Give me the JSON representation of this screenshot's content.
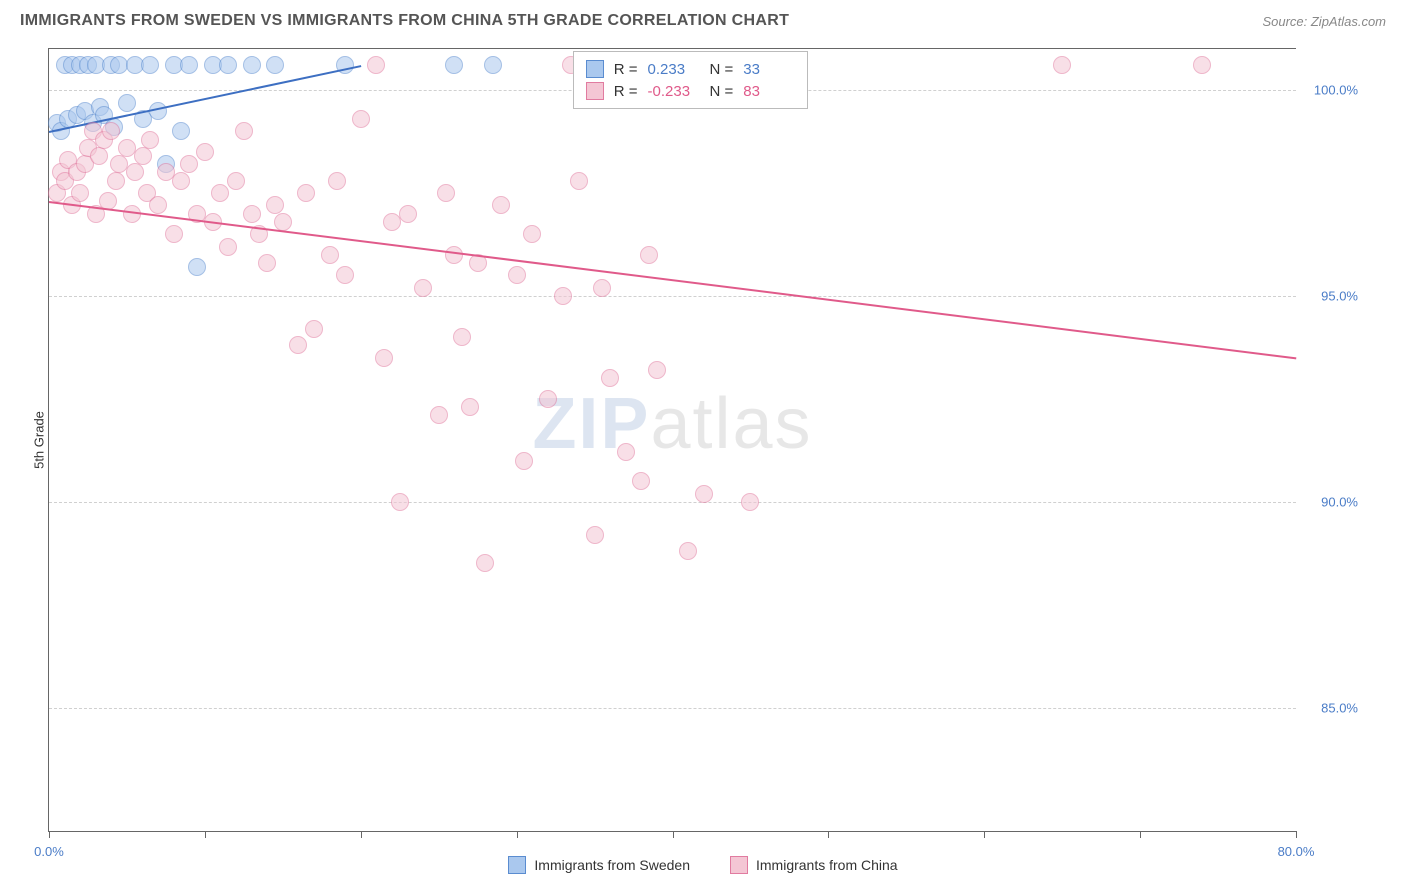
{
  "header": {
    "title": "IMMIGRANTS FROM SWEDEN VS IMMIGRANTS FROM CHINA 5TH GRADE CORRELATION CHART",
    "source": "Source: ZipAtlas.com"
  },
  "chart": {
    "type": "scatter",
    "ylabel": "5th Grade",
    "xlim": [
      0,
      80
    ],
    "ylim": [
      82,
      101
    ],
    "xtick_positions": [
      0,
      10,
      20,
      30,
      40,
      50,
      60,
      70,
      80
    ],
    "xtick_labels": {
      "0": "0.0%",
      "80": "80.0%"
    },
    "ytick_positions": [
      85,
      90,
      95,
      100
    ],
    "ytick_labels": {
      "85": "85.0%",
      "90": "90.0%",
      "95": "95.0%",
      "100": "100.0%"
    },
    "grid_color": "#d0d0d0",
    "background_color": "#ffffff",
    "axis_color": "#666666",
    "marker_radius": 9,
    "marker_opacity": 0.55,
    "watermark": {
      "part1": "ZIP",
      "part2": "atlas"
    },
    "series": [
      {
        "key": "sweden",
        "label": "Immigrants from Sweden",
        "color_fill": "#aac8ee",
        "color_stroke": "#5a8cd0",
        "legend_label_color": "#4a7cc7",
        "R": "0.233",
        "N": "33",
        "trend": {
          "x1": 0,
          "y1": 99.0,
          "x2": 20,
          "y2": 100.6,
          "color": "#3d6fc2",
          "width": 2
        },
        "points": [
          [
            0.5,
            99.2
          ],
          [
            0.8,
            99.0
          ],
          [
            1.0,
            100.6
          ],
          [
            1.2,
            99.3
          ],
          [
            1.5,
            100.6
          ],
          [
            1.8,
            99.4
          ],
          [
            2.0,
            100.6
          ],
          [
            2.3,
            99.5
          ],
          [
            2.5,
            100.6
          ],
          [
            2.8,
            99.2
          ],
          [
            3.0,
            100.6
          ],
          [
            3.3,
            99.6
          ],
          [
            3.5,
            99.4
          ],
          [
            4.0,
            100.6
          ],
          [
            4.2,
            99.1
          ],
          [
            4.5,
            100.6
          ],
          [
            5.0,
            99.7
          ],
          [
            5.5,
            100.6
          ],
          [
            6.0,
            99.3
          ],
          [
            6.5,
            100.6
          ],
          [
            7.0,
            99.5
          ],
          [
            7.5,
            98.2
          ],
          [
            8.0,
            100.6
          ],
          [
            8.5,
            99.0
          ],
          [
            9.0,
            100.6
          ],
          [
            9.5,
            95.7
          ],
          [
            10.5,
            100.6
          ],
          [
            11.5,
            100.6
          ],
          [
            13.0,
            100.6
          ],
          [
            14.5,
            100.6
          ],
          [
            19.0,
            100.6
          ],
          [
            26.0,
            100.6
          ],
          [
            28.5,
            100.6
          ]
        ]
      },
      {
        "key": "china",
        "label": "Immigrants from China",
        "color_fill": "#f4c6d4",
        "color_stroke": "#e17ba0",
        "legend_label_color": "#e05a8a",
        "R": "-0.233",
        "N": "83",
        "trend": {
          "x1": 0,
          "y1": 97.3,
          "x2": 80,
          "y2": 93.5,
          "color": "#e05a8a",
          "width": 2
        },
        "points": [
          [
            0.5,
            97.5
          ],
          [
            0.8,
            98.0
          ],
          [
            1.0,
            97.8
          ],
          [
            1.2,
            98.3
          ],
          [
            1.5,
            97.2
          ],
          [
            1.8,
            98.0
          ],
          [
            2.0,
            97.5
          ],
          [
            2.3,
            98.2
          ],
          [
            2.5,
            98.6
          ],
          [
            2.8,
            99.0
          ],
          [
            3.0,
            97.0
          ],
          [
            3.2,
            98.4
          ],
          [
            3.5,
            98.8
          ],
          [
            3.8,
            97.3
          ],
          [
            4.0,
            99.0
          ],
          [
            4.3,
            97.8
          ],
          [
            4.5,
            98.2
          ],
          [
            5.0,
            98.6
          ],
          [
            5.3,
            97.0
          ],
          [
            5.5,
            98.0
          ],
          [
            6.0,
            98.4
          ],
          [
            6.3,
            97.5
          ],
          [
            6.5,
            98.8
          ],
          [
            7.0,
            97.2
          ],
          [
            7.5,
            98.0
          ],
          [
            8.0,
            96.5
          ],
          [
            8.5,
            97.8
          ],
          [
            9.0,
            98.2
          ],
          [
            9.5,
            97.0
          ],
          [
            10.0,
            98.5
          ],
          [
            10.5,
            96.8
          ],
          [
            11.0,
            97.5
          ],
          [
            11.5,
            96.2
          ],
          [
            12.0,
            97.8
          ],
          [
            12.5,
            99.0
          ],
          [
            13.0,
            97.0
          ],
          [
            13.5,
            96.5
          ],
          [
            14.0,
            95.8
          ],
          [
            14.5,
            97.2
          ],
          [
            15.0,
            96.8
          ],
          [
            16.0,
            93.8
          ],
          [
            16.5,
            97.5
          ],
          [
            17.0,
            94.2
          ],
          [
            18.0,
            96.0
          ],
          [
            18.5,
            97.8
          ],
          [
            19.0,
            95.5
          ],
          [
            20.0,
            99.3
          ],
          [
            21.0,
            100.6
          ],
          [
            21.5,
            93.5
          ],
          [
            22.0,
            96.8
          ],
          [
            22.5,
            90.0
          ],
          [
            23.0,
            97.0
          ],
          [
            24.0,
            95.2
          ],
          [
            25.0,
            92.1
          ],
          [
            25.5,
            97.5
          ],
          [
            26.0,
            96.0
          ],
          [
            26.5,
            94.0
          ],
          [
            27.0,
            92.3
          ],
          [
            27.5,
            95.8
          ],
          [
            28.0,
            88.5
          ],
          [
            29.0,
            97.2
          ],
          [
            30.0,
            95.5
          ],
          [
            30.5,
            91.0
          ],
          [
            31.0,
            96.5
          ],
          [
            32.0,
            92.5
          ],
          [
            33.0,
            95.0
          ],
          [
            33.5,
            100.6
          ],
          [
            34.0,
            97.8
          ],
          [
            35.0,
            89.2
          ],
          [
            35.5,
            95.2
          ],
          [
            36.0,
            93.0
          ],
          [
            37.0,
            91.2
          ],
          [
            38.0,
            90.5
          ],
          [
            38.5,
            96.0
          ],
          [
            39.0,
            93.2
          ],
          [
            40.0,
            100.6
          ],
          [
            41.0,
            88.8
          ],
          [
            42.0,
            90.2
          ],
          [
            43.0,
            100.6
          ],
          [
            45.0,
            90.0
          ],
          [
            48.0,
            100.6
          ],
          [
            65.0,
            100.6
          ],
          [
            74.0,
            100.6
          ]
        ]
      }
    ],
    "stat_box": {
      "labels": {
        "R": "R  =",
        "N": "N  ="
      }
    },
    "bottom_legend": true
  }
}
